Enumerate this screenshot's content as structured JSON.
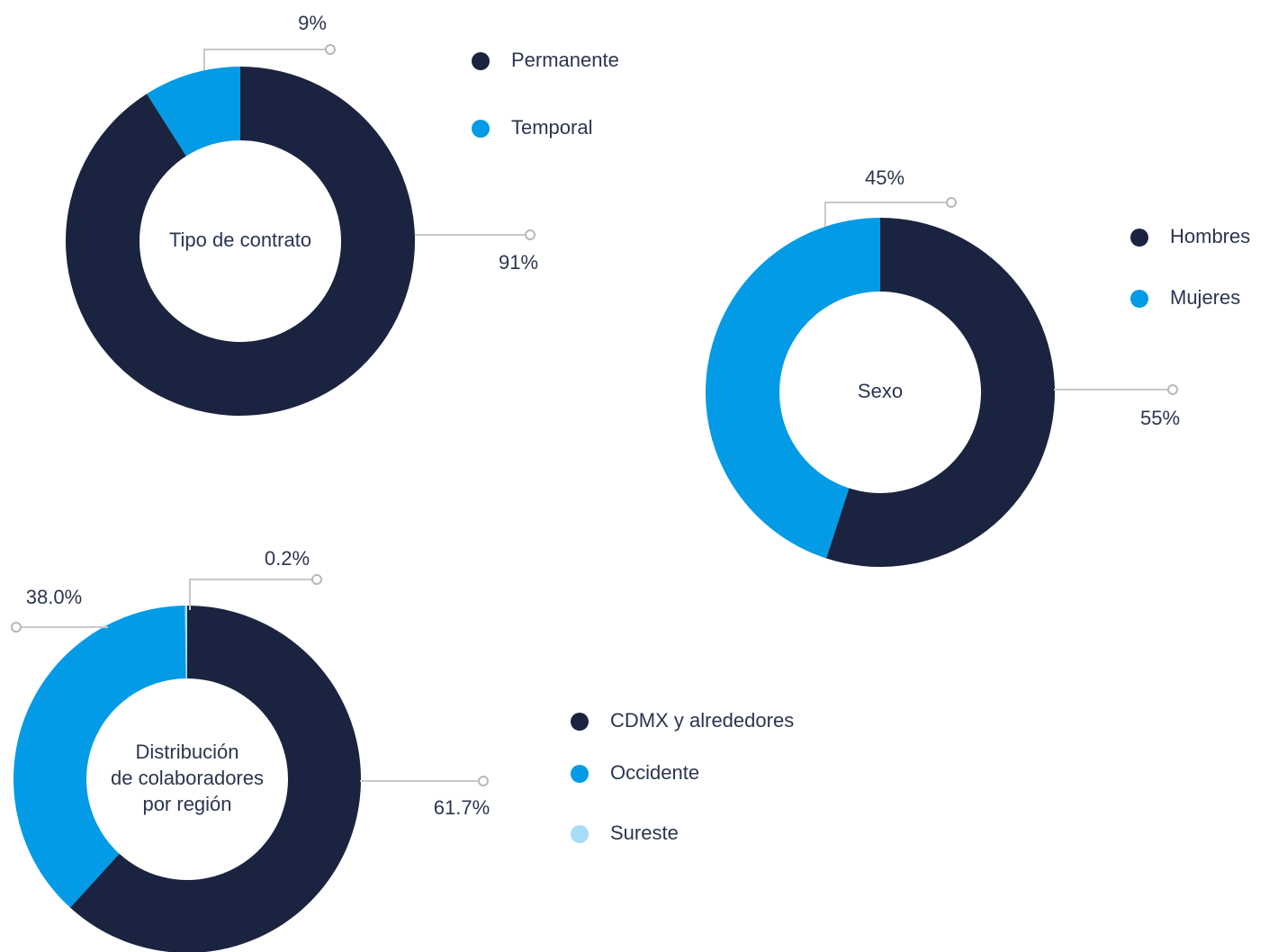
{
  "chart_data": [
    {
      "type": "pie",
      "title": [
        "Tipo de contrato"
      ],
      "categories": [
        "Permanente",
        "Temporal"
      ],
      "values": [
        91,
        9
      ],
      "value_labels": [
        "91%",
        "9%"
      ],
      "colors": [
        "#1a2440",
        "#039be5"
      ],
      "hole": true
    },
    {
      "type": "pie",
      "title": [
        "Sexo"
      ],
      "categories": [
        "Hombres",
        "Mujeres"
      ],
      "values": [
        55,
        45
      ],
      "value_labels": [
        "55%",
        "45%"
      ],
      "colors": [
        "#1a2440",
        "#039be5"
      ],
      "hole": true
    },
    {
      "type": "pie",
      "title": [
        "Distribución",
        "de colaboradores",
        "por región"
      ],
      "categories": [
        "CDMX y alrededores",
        "Occidente",
        "Sureste"
      ],
      "values": [
        61.7,
        38.0,
        0.2
      ],
      "value_labels": [
        "61.7%",
        "38.0%",
        "0.2%"
      ],
      "colors": [
        "#1a2440",
        "#039be5",
        "#a6dcf5"
      ],
      "hole": true
    }
  ]
}
